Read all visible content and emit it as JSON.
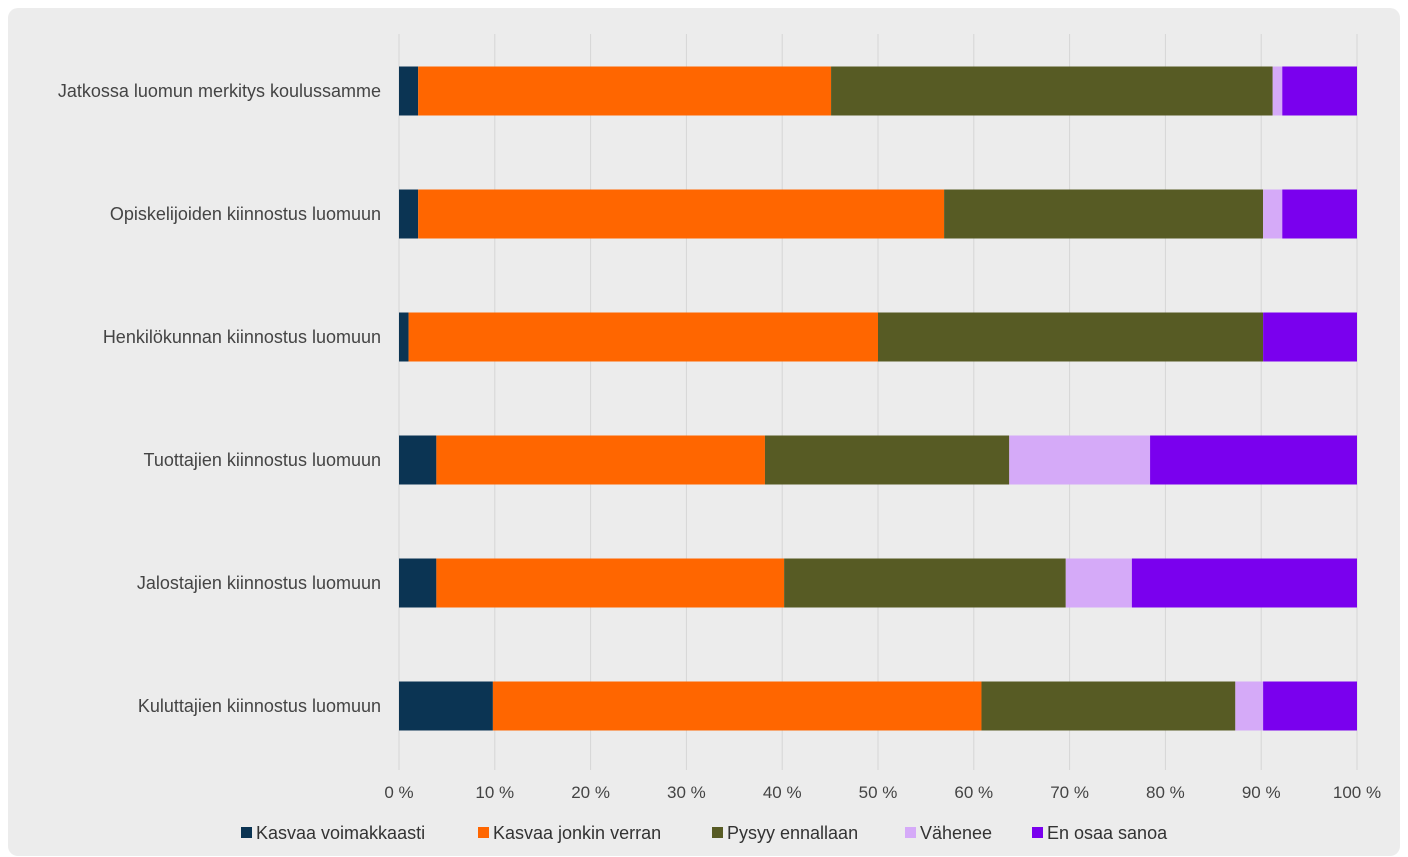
{
  "chart_data": {
    "type": "bar",
    "orientation": "horizontal",
    "stacked": "percent",
    "categories": [
      "Jatkossa luomun merkitys koulussamme",
      "Opiskelijoiden kiinnostus luomuun",
      "Henkilökunnan kiinnostus luomuun",
      "Tuottajien kiinnostus luomuun",
      "Jalostajien kiinnostus luomuun",
      "Kuluttajien kiinnostus luomuun"
    ],
    "series": [
      {
        "name": "Kasvaa voimakkaasti",
        "color": "#0b3453",
        "values": [
          2.0,
          2.0,
          1.0,
          3.9,
          3.9,
          9.8
        ]
      },
      {
        "name": "Kasvaa jonkin verran",
        "color": "#ff6600",
        "values": [
          43.1,
          54.9,
          49.0,
          34.3,
          36.3,
          51.0
        ]
      },
      {
        "name": "Pysyy ennallaan",
        "color": "#575b24",
        "values": [
          46.1,
          33.3,
          40.2,
          25.5,
          29.4,
          26.5
        ]
      },
      {
        "name": "Vähenee",
        "color": "#d5aaf8",
        "values": [
          1.0,
          2.0,
          0.0,
          14.7,
          6.9,
          2.9
        ]
      },
      {
        "name": "En osaa sanoa",
        "color": "#7a00ee",
        "values": [
          7.8,
          7.8,
          9.8,
          21.6,
          23.5,
          9.8
        ]
      }
    ],
    "x_ticks": [
      "0 %",
      "10 %",
      "20 %",
      "30 %",
      "40 %",
      "50 %",
      "60 %",
      "70 %",
      "80 %",
      "90 %",
      "100 %"
    ],
    "xlim": [
      0,
      100
    ],
    "grid": "vertical",
    "legend_position": "bottom"
  }
}
